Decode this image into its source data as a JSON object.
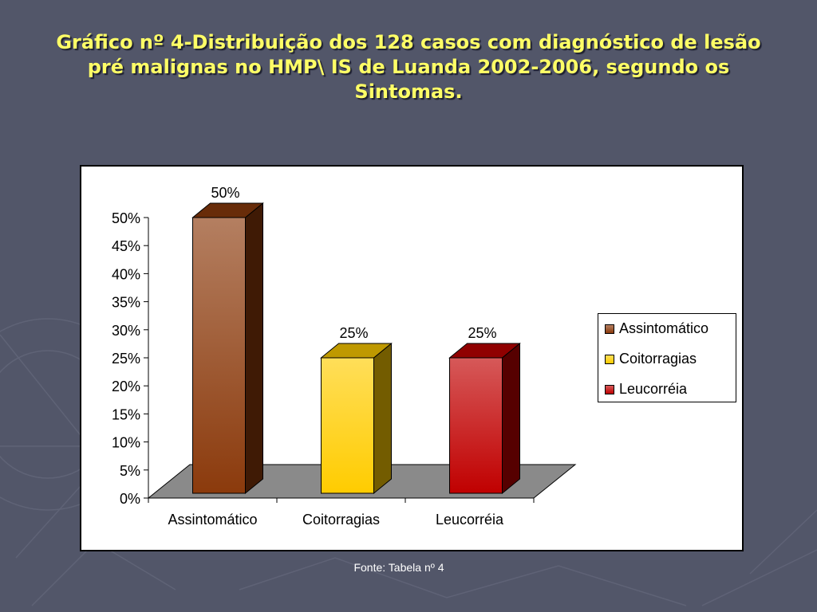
{
  "slide": {
    "title_lines": [
      "Gráfico nº 4-Distribuição dos 128 casos com diagnóstico de lesão",
      "pré malignas no HMP\\ IS  de Luanda 2002-2006, segundo os",
      "Sintomas."
    ],
    "source": "Fonte: Tabela nº 4"
  },
  "chart_data": {
    "type": "bar",
    "title": "Gráfico nº 4-Distribuição dos 128 casos com diagnóstico de lesão pré malignas no HMP\\ IS  de Luanda 2002-2006, segundo os Sintomas.",
    "categories": [
      "Assintomático",
      "Coitorragias",
      "Leucorréia"
    ],
    "values": [
      50,
      25,
      25
    ],
    "value_labels": [
      "50%",
      "25%",
      "25%"
    ],
    "colors": [
      "#8b3a0c",
      "#ffcc00",
      "#c00000"
    ],
    "yticks": [
      "0%",
      "5%",
      "10%",
      "15%",
      "20%",
      "25%",
      "30%",
      "35%",
      "40%",
      "45%",
      "50%"
    ],
    "ylim": [
      0,
      50
    ],
    "xlabel": "",
    "ylabel": "",
    "legend": {
      "position": "right",
      "entries": [
        "Assintomático",
        "Coitorragias",
        "Leucorréia"
      ]
    },
    "grid": false,
    "style": "3d"
  }
}
